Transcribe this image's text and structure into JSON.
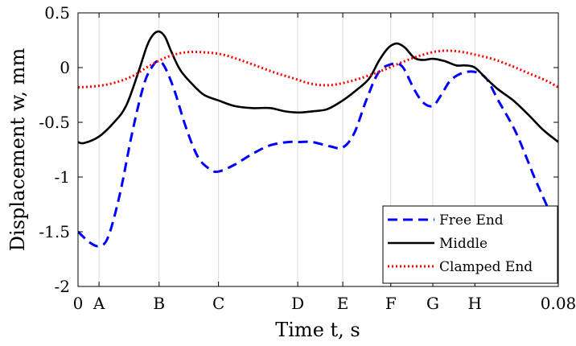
{
  "chart_data": {
    "type": "line",
    "xlabel": "Time t, s",
    "ylabel": "Displacement w, mm",
    "xlim": [
      0,
      0.08
    ],
    "ylim": [
      -2,
      0.5
    ],
    "grid": "vertical lines at named time instants",
    "legend_position": "bottom-right",
    "yticks": [
      {
        "value": 0.5,
        "label": "0.5"
      },
      {
        "value": 0,
        "label": "0"
      },
      {
        "value": -0.5,
        "label": "-0.5"
      },
      {
        "value": -1,
        "label": "-1"
      },
      {
        "value": -1.5,
        "label": "-1.5"
      },
      {
        "value": -2,
        "label": "-2"
      }
    ],
    "xticks": [
      {
        "value": 0,
        "label": "0",
        "grid": false
      },
      {
        "value": 0.0035,
        "label": "A",
        "grid": true
      },
      {
        "value": 0.0135,
        "label": "B",
        "grid": true
      },
      {
        "value": 0.0234,
        "label": "C",
        "grid": true
      },
      {
        "value": 0.0366,
        "label": "D",
        "grid": true
      },
      {
        "value": 0.0441,
        "label": "E",
        "grid": true
      },
      {
        "value": 0.0521,
        "label": "F",
        "grid": true
      },
      {
        "value": 0.0591,
        "label": "G",
        "grid": true
      },
      {
        "value": 0.0661,
        "label": "H",
        "grid": true
      },
      {
        "value": 0.08,
        "label": "0.08",
        "grid": false
      }
    ],
    "series": [
      {
        "name": "Free End",
        "color": "#0000ff",
        "style": "dashed",
        "x": [
          0,
          0.002,
          0.0035,
          0.005,
          0.007,
          0.009,
          0.011,
          0.0125,
          0.0135,
          0.0145,
          0.016,
          0.018,
          0.02,
          0.022,
          0.0234,
          0.026,
          0.029,
          0.032,
          0.035,
          0.0366,
          0.039,
          0.042,
          0.0441,
          0.046,
          0.048,
          0.05,
          0.0521,
          0.054,
          0.056,
          0.0575,
          0.0591,
          0.0605,
          0.062,
          0.064,
          0.0661,
          0.068,
          0.07,
          0.073,
          0.076,
          0.078,
          0.08
        ],
        "y": [
          -1.5,
          -1.6,
          -1.63,
          -1.55,
          -1.15,
          -0.6,
          -0.15,
          0.02,
          0.06,
          0.0,
          -0.2,
          -0.55,
          -0.82,
          -0.93,
          -0.95,
          -0.89,
          -0.79,
          -0.71,
          -0.68,
          -0.68,
          -0.68,
          -0.72,
          -0.73,
          -0.6,
          -0.3,
          -0.05,
          0.03,
          0.01,
          -0.2,
          -0.32,
          -0.35,
          -0.25,
          -0.12,
          -0.05,
          -0.04,
          -0.1,
          -0.3,
          -0.6,
          -1.0,
          -1.25,
          -1.5
        ]
      },
      {
        "name": "Middle",
        "color": "#000000",
        "style": "solid",
        "x": [
          0,
          0.001,
          0.0035,
          0.006,
          0.008,
          0.01,
          0.0115,
          0.0125,
          0.0135,
          0.0145,
          0.0155,
          0.017,
          0.019,
          0.021,
          0.0234,
          0.026,
          0.029,
          0.032,
          0.0345,
          0.0366,
          0.039,
          0.0415,
          0.0441,
          0.0465,
          0.0485,
          0.05,
          0.0512,
          0.0521,
          0.0532,
          0.0545,
          0.056,
          0.0575,
          0.0591,
          0.061,
          0.063,
          0.0645,
          0.0661,
          0.068,
          0.07,
          0.0725,
          0.075,
          0.0775,
          0.08
        ],
        "y": [
          -0.68,
          -0.69,
          -0.63,
          -0.5,
          -0.35,
          -0.05,
          0.2,
          0.3,
          0.33,
          0.28,
          0.15,
          -0.02,
          -0.15,
          -0.25,
          -0.3,
          -0.35,
          -0.37,
          -0.37,
          -0.4,
          -0.41,
          -0.4,
          -0.38,
          -0.3,
          -0.2,
          -0.1,
          0.05,
          0.15,
          0.2,
          0.22,
          0.18,
          0.09,
          0.07,
          0.08,
          0.06,
          0.02,
          0.02,
          0.0,
          -0.1,
          -0.2,
          -0.3,
          -0.43,
          -0.57,
          -0.68
        ]
      },
      {
        "name": "Clamped End",
        "color": "#ff0000",
        "style": "dotted",
        "x": [
          0,
          0.003,
          0.006,
          0.009,
          0.012,
          0.015,
          0.018,
          0.021,
          0.024,
          0.027,
          0.03,
          0.033,
          0.036,
          0.039,
          0.042,
          0.045,
          0.048,
          0.051,
          0.054,
          0.057,
          0.06,
          0.063,
          0.066,
          0.069,
          0.072,
          0.075,
          0.078,
          0.08
        ],
        "y": [
          -0.18,
          -0.17,
          -0.14,
          -0.08,
          0.02,
          0.1,
          0.14,
          0.14,
          0.12,
          0.07,
          0.01,
          -0.05,
          -0.1,
          -0.15,
          -0.16,
          -0.13,
          -0.08,
          -0.02,
          0.05,
          0.11,
          0.15,
          0.15,
          0.12,
          0.08,
          0.02,
          -0.05,
          -0.12,
          -0.18
        ]
      }
    ]
  }
}
